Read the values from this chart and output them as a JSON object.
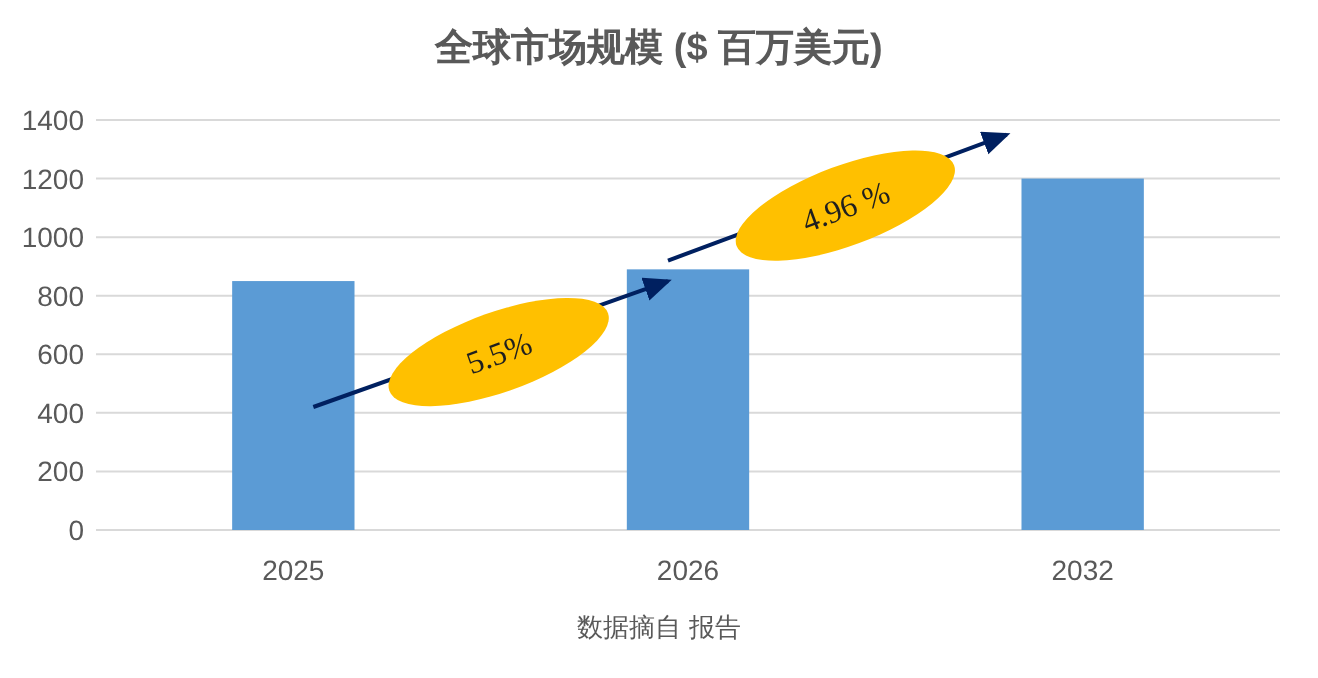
{
  "chart_data": {
    "type": "bar",
    "title": "全球市场规模 ($ 百万美元)",
    "categories": [
      "2025",
      "2026",
      "2032"
    ],
    "values": [
      850,
      890,
      1200
    ],
    "color": "#5b9bd5",
    "ylim": [
      0,
      1400
    ],
    "yticks": [
      0,
      200,
      400,
      600,
      800,
      1000,
      1200,
      1400
    ],
    "grid": "y",
    "annotations": [
      "5.5%",
      "4.96 %",
      "数据摘自 报告"
    ]
  }
}
